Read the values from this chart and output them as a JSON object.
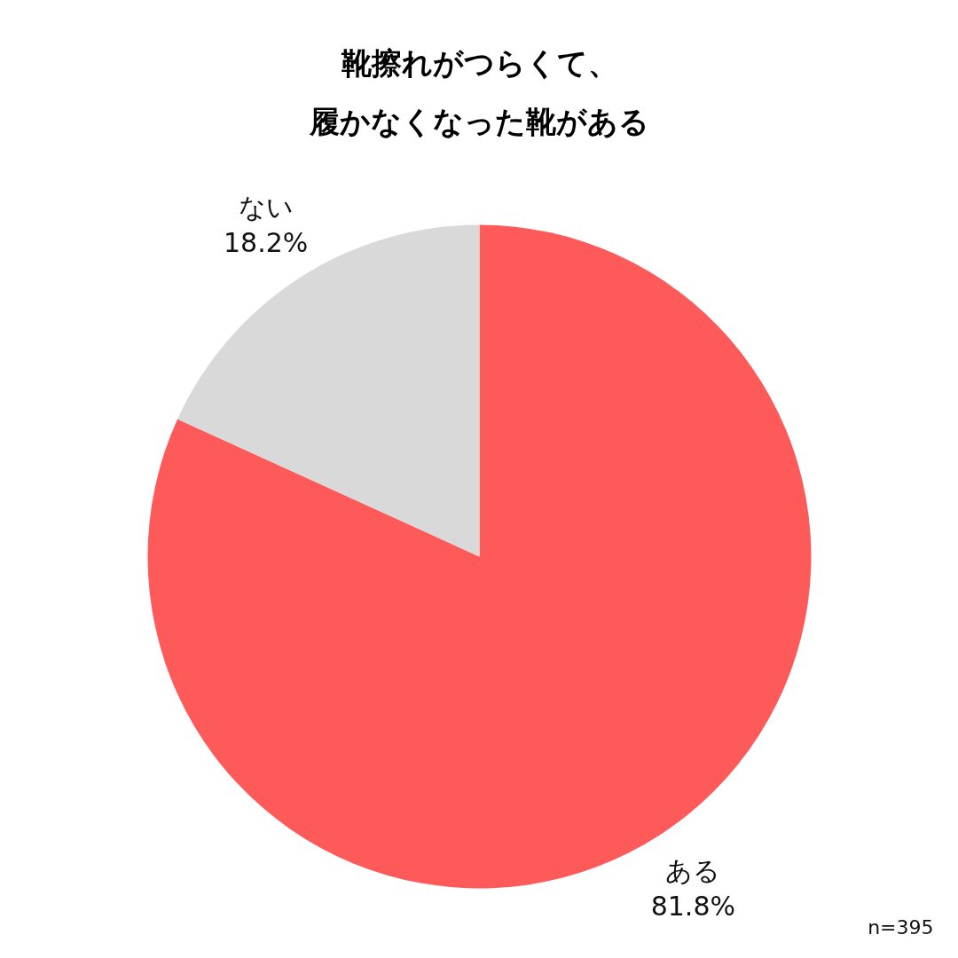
{
  "chart_data": {
    "type": "pie",
    "title": "靴擦れがつらくて、履かなくなった靴がある",
    "categories": [
      "ある",
      "ない"
    ],
    "values": [
      81.8,
      18.2
    ],
    "colors": [
      "#ff5a5a",
      "#d9d9d9"
    ],
    "value_labels": [
      "81.8%",
      "18.2%"
    ],
    "annotations": [
      "n=395"
    ]
  }
}
